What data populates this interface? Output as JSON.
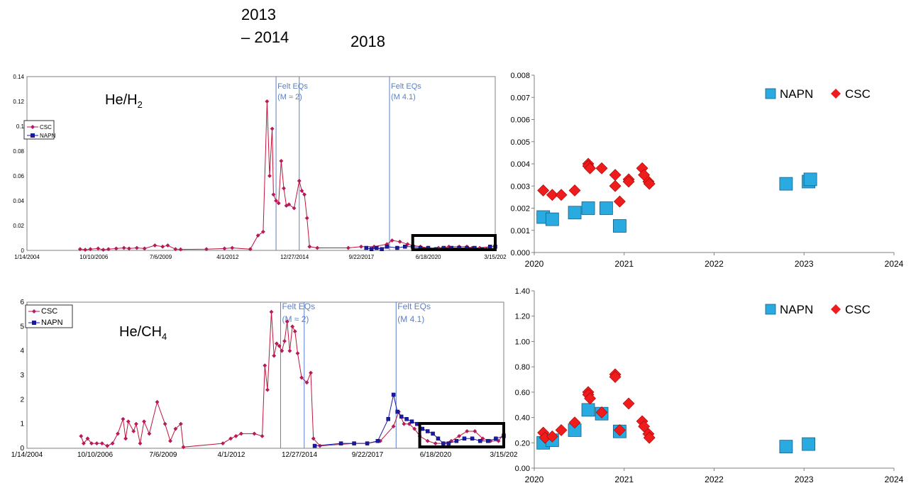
{
  "header": {
    "year_a1": "2013",
    "year_a2": "– 2014",
    "year_b": "2018"
  },
  "chart_data": [
    {
      "type": "line",
      "panel_label_main": "He/H",
      "panel_label_sub": "2",
      "x_tick_labels": [
        "1/14/2004",
        "10/10/2006",
        "7/6/2009",
        "4/1/2012",
        "12/27/2014",
        "9/22/2017",
        "6/18/2020",
        "3/15/202"
      ],
      "ylim": [
        0,
        0.14
      ],
      "y_ticks": [
        0,
        0.02,
        0.04,
        0.06,
        0.08,
        0.1,
        0.12,
        0.14
      ],
      "y_tick_labels": [
        "0",
        "0.02",
        "0.04",
        "0.06",
        "0.08",
        "0.1",
        "0.12",
        "0.14"
      ],
      "legend": [
        "CSC",
        "NAPN"
      ],
      "annotations": [
        {
          "lines": [
            "Felt EQs",
            "(M   ≈ 2)"
          ],
          "date": "2013.7"
        },
        {
          "lines": [
            "Felt EQs",
            "(M 4.1)"
          ],
          "date": "2018.1"
        }
      ],
      "event_lines": [
        2013.7,
        2014.6,
        2018.1
      ],
      "highlight_box": [
        2019.0,
        2022.2
      ],
      "colors": {
        "csc": "#c0143c",
        "napn": "#1a1aa6",
        "event": "#5b7fc7"
      },
      "series": [
        {
          "name": "CSC",
          "x": [
            2006.1,
            2006.3,
            2006.5,
            2006.8,
            2007.0,
            2007.2,
            2007.5,
            2007.8,
            2008.0,
            2008.3,
            2008.6,
            2009.0,
            2009.3,
            2009.5,
            2009.8,
            2010.0,
            2011.0,
            2011.7,
            2012.0,
            2012.7,
            2013.0,
            2013.2,
            2013.35,
            2013.45,
            2013.55,
            2013.6,
            2013.7,
            2013.8,
            2013.9,
            2014.0,
            2014.1,
            2014.2,
            2014.4,
            2014.6,
            2014.7,
            2014.8,
            2014.9,
            2015.0,
            2015.3,
            2016.5,
            2017.0,
            2017.5,
            2018.0,
            2018.2,
            2018.5,
            2018.8,
            2019.0,
            2019.3,
            2019.6,
            2020.0,
            2020.4,
            2020.8,
            2021.1,
            2021.3,
            2021.6,
            2022.0
          ],
          "values": [
            0.001,
            0.0005,
            0.001,
            0.0015,
            0.0005,
            0.001,
            0.0015,
            0.002,
            0.0015,
            0.002,
            0.0015,
            0.004,
            0.003,
            0.004,
            0.001,
            0.0008,
            0.001,
            0.0015,
            0.002,
            0.001,
            0.012,
            0.015,
            0.12,
            0.06,
            0.098,
            0.045,
            0.04,
            0.038,
            0.072,
            0.05,
            0.036,
            0.037,
            0.034,
            0.056,
            0.048,
            0.045,
            0.026,
            0.003,
            0.002,
            0.002,
            0.003,
            0.003,
            0.005,
            0.008,
            0.007,
            0.005,
            0.004,
            0.003,
            0.002,
            0.002,
            0.003,
            0.003,
            0.003,
            0.002,
            0.002,
            0.003
          ]
        },
        {
          "name": "NAPN",
          "x": [
            2017.2,
            2017.4,
            2017.6,
            2017.8,
            2018.0,
            2018.4,
            2018.7,
            2019.0,
            2019.3,
            2019.6,
            2019.9,
            2020.2,
            2020.5,
            2020.8,
            2021.1,
            2021.4,
            2021.7,
            2022.0,
            2022.2
          ],
          "values": [
            0.002,
            0.001,
            0.002,
            0.001,
            0.003,
            0.002,
            0.003,
            0.003,
            0.002,
            0.002,
            0.001,
            0.002,
            0.002,
            0.002,
            0.002,
            0.002,
            0.001,
            0.003,
            0.003
          ]
        }
      ]
    },
    {
      "type": "scatter",
      "legend": [
        "NAPN",
        "CSC"
      ],
      "x_tick_labels": [
        "2020",
        "2021",
        "2022",
        "2023",
        "2024"
      ],
      "xlim": [
        2020,
        2024
      ],
      "ylim": [
        0,
        0.008
      ],
      "y_tick_labels": [
        "0.000",
        "0.001",
        "0.002",
        "0.003",
        "0.004",
        "0.005",
        "0.006",
        "0.007",
        "0.008"
      ],
      "colors": {
        "csc": "#ee1c1c",
        "napn": "#29abe2"
      },
      "series": [
        {
          "name": "NAPN",
          "x": [
            2020.1,
            2020.2,
            2020.45,
            2020.6,
            2020.8,
            2020.95,
            2022.8,
            2023.05,
            2023.07
          ],
          "values": [
            0.0016,
            0.0015,
            0.0018,
            0.002,
            0.002,
            0.0012,
            0.0031,
            0.0032,
            0.0033
          ]
        },
        {
          "name": "CSC",
          "x": [
            2020.1,
            2020.2,
            2020.3,
            2020.45,
            2020.6,
            2020.6,
            2020.62,
            2020.75,
            2020.9,
            2020.9,
            2020.95,
            2021.05,
            2021.05,
            2021.2,
            2021.22,
            2021.27,
            2021.28
          ],
          "values": [
            0.0028,
            0.0026,
            0.0026,
            0.0028,
            0.004,
            0.0039,
            0.0038,
            0.0038,
            0.0035,
            0.003,
            0.0023,
            0.0033,
            0.0032,
            0.0038,
            0.0035,
            0.0032,
            0.0031
          ]
        }
      ]
    },
    {
      "type": "line",
      "panel_label_main": "He/CH",
      "panel_label_sub": "4",
      "x_tick_labels": [
        "1/14/2004",
        "10/10/2006",
        "7/6/2009",
        "4/1/2012",
        "12/27/2014",
        "9/22/2017",
        "6/18/2020",
        "3/15/202"
      ],
      "ylim": [
        0,
        6
      ],
      "y_ticks": [
        0,
        1,
        2,
        3,
        4,
        5,
        6
      ],
      "y_tick_labels": [
        "0",
        "1",
        "2",
        "3",
        "4",
        "5",
        "6"
      ],
      "legend": [
        "CSC",
        "NAPN"
      ],
      "annotations": [
        {
          "lines": [
            "Felt EQs",
            "(M   ≈ 2)"
          ],
          "date": "2013.7"
        },
        {
          "lines": [
            "Felt EQs",
            "(M 4.1)"
          ],
          "date": "2018.1"
        }
      ],
      "event_lines": [
        2013.7,
        2014.6,
        2018.1
      ],
      "highlight_box": [
        2019.0,
        2022.2
      ],
      "colors": {
        "csc": "#c0143c",
        "napn": "#1a1aa6",
        "event": "#5b7fc7"
      },
      "series": [
        {
          "name": "CSC",
          "x": [
            2006.1,
            2006.2,
            2006.35,
            2006.5,
            2006.7,
            2006.9,
            2007.1,
            2007.3,
            2007.5,
            2007.7,
            2007.8,
            2007.9,
            2008.1,
            2008.2,
            2008.35,
            2008.5,
            2008.7,
            2009.0,
            2009.3,
            2009.5,
            2009.7,
            2009.9,
            2010.0,
            2011.5,
            2011.8,
            2012.0,
            2012.2,
            2012.7,
            2013.0,
            2013.1,
            2013.2,
            2013.35,
            2013.45,
            2013.55,
            2013.65,
            2013.75,
            2013.85,
            2013.95,
            2014.05,
            2014.15,
            2014.25,
            2014.35,
            2014.5,
            2014.7,
            2014.85,
            2014.95,
            2015.2,
            2016.5,
            2017.0,
            2017.5,
            2018.0,
            2018.2,
            2018.4,
            2018.6,
            2018.8,
            2019.0,
            2019.3,
            2019.6,
            2019.9,
            2020.2,
            2020.5,
            2020.8,
            2021.1,
            2021.4,
            2021.7,
            2022.0,
            2022.2
          ],
          "values": [
            0.5,
            0.2,
            0.4,
            0.2,
            0.2,
            0.2,
            0.1,
            0.2,
            0.6,
            1.2,
            0.4,
            1.1,
            0.7,
            1.0,
            0.2,
            1.1,
            0.6,
            1.9,
            1.0,
            0.3,
            0.8,
            1.0,
            0.05,
            0.2,
            0.4,
            0.5,
            0.6,
            0.6,
            0.5,
            3.4,
            2.4,
            5.6,
            3.8,
            4.3,
            4.2,
            4.0,
            4.4,
            5.2,
            4.0,
            5.0,
            4.8,
            3.9,
            2.9,
            2.7,
            3.1,
            0.4,
            0.1,
            0.2,
            0.2,
            0.3,
            0.9,
            1.5,
            1.0,
            1.0,
            0.8,
            0.5,
            0.3,
            0.2,
            0.2,
            0.3,
            0.5,
            0.7,
            0.7,
            0.4,
            0.3,
            0.3,
            0.6
          ]
        },
        {
          "name": "NAPN",
          "x": [
            2015.0,
            2016.0,
            2016.5,
            2017.0,
            2017.4,
            2017.8,
            2018.0,
            2018.15,
            2018.3,
            2018.5,
            2018.7,
            2018.9,
            2019.1,
            2019.3,
            2019.5,
            2019.7,
            2019.9,
            2020.1,
            2020.4,
            2020.7,
            2021.0,
            2021.3,
            2021.6,
            2021.9,
            2022.2
          ],
          "values": [
            0.1,
            0.2,
            0.2,
            0.2,
            0.3,
            1.2,
            2.2,
            1.5,
            1.3,
            1.2,
            1.1,
            1.0,
            0.8,
            0.7,
            0.6,
            0.4,
            0.2,
            0.2,
            0.3,
            0.4,
            0.4,
            0.3,
            0.3,
            0.4,
            0.5
          ]
        }
      ]
    },
    {
      "type": "scatter",
      "legend": [
        "NAPN",
        "CSC"
      ],
      "x_tick_labels": [
        "2020",
        "2021",
        "2022",
        "2023",
        "2024"
      ],
      "xlim": [
        2020,
        2024
      ],
      "ylim": [
        0,
        1.4
      ],
      "y_tick_labels": [
        "0.00",
        "0.20",
        "0.40",
        "0.60",
        "0.80",
        "1.00",
        "1.20",
        "1.40"
      ],
      "colors": {
        "csc": "#ee1c1c",
        "napn": "#29abe2"
      },
      "series": [
        {
          "name": "NAPN",
          "x": [
            2020.1,
            2020.2,
            2020.45,
            2020.6,
            2020.75,
            2020.95,
            2022.8,
            2023.05
          ],
          "values": [
            0.2,
            0.22,
            0.3,
            0.46,
            0.43,
            0.29,
            0.17,
            0.19
          ]
        },
        {
          "name": "CSC",
          "x": [
            2020.1,
            2020.12,
            2020.2,
            2020.3,
            2020.45,
            2020.6,
            2020.6,
            2020.62,
            2020.75,
            2020.9,
            2020.9,
            2020.95,
            2021.05,
            2021.2,
            2021.22,
            2021.27,
            2021.28
          ],
          "values": [
            0.28,
            0.24,
            0.25,
            0.3,
            0.36,
            0.6,
            0.58,
            0.55,
            0.44,
            0.74,
            0.72,
            0.3,
            0.51,
            0.37,
            0.33,
            0.27,
            0.24
          ]
        }
      ]
    }
  ]
}
